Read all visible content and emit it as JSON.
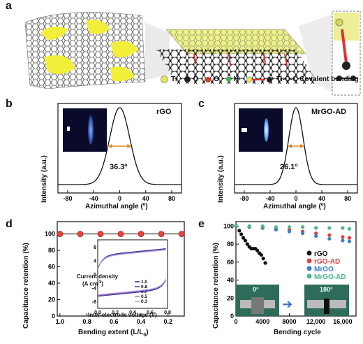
{
  "panels": {
    "a": {
      "label": "a",
      "legend": {
        "ti": "Ti",
        "c": "C",
        "o": "O",
        "h": "H",
        "bond": "Ti-O-C Covalent bonding"
      },
      "colors": {
        "ti": "#e6e85a",
        "c": "#222222",
        "o": "#d83a2a",
        "h": "#3fb34f"
      }
    },
    "b": {
      "label": "b",
      "title": "rGO",
      "fwhm": "36.3º"
    },
    "c": {
      "label": "c",
      "title": "MrGO-AD",
      "fwhm": "26.1º"
    },
    "d": {
      "label": "d"
    },
    "e": {
      "label": "e",
      "inset": {
        "left": "0°",
        "right": "180°"
      }
    }
  },
  "chart_data": [
    {
      "panel": "b",
      "type": "line",
      "xlabel": "Azimuthal angle (º)",
      "ylabel": "Intensity (a.u.)",
      "xticks": [
        "-80",
        "-40",
        "0",
        "40",
        "80"
      ],
      "xlim": [
        -95,
        95
      ],
      "series": [
        {
          "name": "rGO",
          "fwhm": 36.3,
          "center": 0
        }
      ]
    },
    {
      "panel": "c",
      "type": "line",
      "xlabel": "Azimuthal angle (º)",
      "ylabel": "Intensity (a.u.)",
      "xticks": [
        "-80",
        "-40",
        "0",
        "40",
        "80"
      ],
      "xlim": [
        -95,
        95
      ],
      "series": [
        {
          "name": "MrGO-AD",
          "fwhm": 26.1,
          "center": 0
        }
      ]
    },
    {
      "panel": "d",
      "type": "scatter",
      "xlabel": "Bending extent (L/L₀)",
      "ylabel": "Capacitance retention (%)",
      "xlim": [
        1.02,
        0.08
      ],
      "ylim": [
        0,
        115
      ],
      "xticks": [
        "1.0",
        "0.8",
        "0.6",
        "0.4",
        "0.2"
      ],
      "yticks": [
        "0",
        "20",
        "40",
        "60",
        "80",
        "100"
      ],
      "x": [
        1.0,
        0.85,
        0.7,
        0.55,
        0.4,
        0.25,
        0.1
      ],
      "series": [
        {
          "values": [
            100,
            100,
            100,
            100,
            100,
            100,
            100
          ]
        }
      ],
      "inset": {
        "type": "line",
        "xlabel": "Inter-electrode voltage (V)",
        "ylabel": "Current density (A cm⁻³)",
        "xticks": [
          "0.0",
          "0.2",
          "0.4",
          "0.6",
          "0.8"
        ],
        "yticks": [
          "-8",
          "-4",
          "0",
          "4",
          "8"
        ],
        "legend": [
          "1.0",
          "0.8",
          "0.7",
          "0.5",
          "0.3"
        ]
      }
    },
    {
      "panel": "e",
      "type": "scatter",
      "xlabel": "Bending cycle",
      "ylabel": "Capacitance retention (%)",
      "xlim": [
        0,
        18000
      ],
      "ylim": [
        0,
        105
      ],
      "xticks": [
        "0",
        "4000",
        "8000",
        "12,000",
        "16,000"
      ],
      "yticks": [
        "0",
        "20",
        "40",
        "60",
        "80",
        "100"
      ],
      "series": [
        {
          "name": "rGO",
          "color": "#111111",
          "x": [
            500,
            800,
            1100,
            1400,
            1700,
            2000,
            2300,
            2600,
            2900,
            3200,
            3500,
            3800,
            4100,
            4400
          ],
          "values": [
            95,
            91,
            87,
            84,
            80,
            77,
            75,
            75,
            75,
            73,
            70,
            68,
            64,
            59
          ]
        },
        {
          "name": "rGO-AD",
          "color": "#e04040",
          "x": [
            0,
            2000,
            4000,
            6000,
            8000,
            10000,
            12000,
            14000,
            16000,
            17000
          ],
          "values": [
            100,
            99,
            98,
            97,
            96,
            94,
            92,
            90,
            88,
            87
          ]
        },
        {
          "name": "MrGO",
          "color": "#3a7fd0",
          "x": [
            0,
            2000,
            4000,
            6000,
            8000,
            10000,
            12000,
            14000,
            16000,
            17000
          ],
          "values": [
            100,
            99,
            98,
            96,
            94,
            92,
            89,
            86,
            84,
            83
          ]
        },
        {
          "name": "MrGO-AD",
          "color": "#4cb88a",
          "x": [
            0,
            2000,
            4000,
            6000,
            8000,
            10000,
            12000,
            14000,
            16000,
            17000
          ],
          "values": [
            101,
            100,
            100,
            99,
            99,
            99,
            98,
            98,
            98,
            97
          ]
        }
      ]
    }
  ]
}
